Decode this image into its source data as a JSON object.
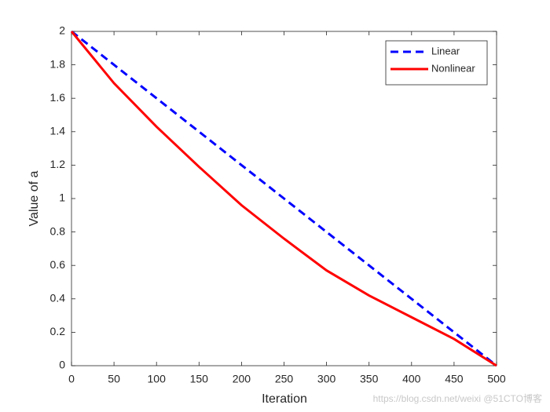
{
  "chart_data": {
    "type": "line",
    "x": [
      0,
      50,
      100,
      150,
      200,
      250,
      300,
      350,
      400,
      450,
      500
    ],
    "series": [
      {
        "name": "Linear",
        "color": "#0000ff",
        "dash": true,
        "values": [
          2,
          1.8,
          1.6,
          1.4,
          1.2,
          1.0,
          0.8,
          0.6,
          0.4,
          0.2,
          0
        ]
      },
      {
        "name": "Nonlinear",
        "color": "#ff0000",
        "dash": false,
        "values": [
          2,
          1.69,
          1.43,
          1.19,
          0.96,
          0.76,
          0.57,
          0.42,
          0.29,
          0.16,
          0
        ]
      }
    ],
    "xlabel": "Iteration",
    "ylabel": "Value of a",
    "xlim": [
      0,
      500
    ],
    "ylim": [
      0,
      2
    ],
    "xticks": [
      0,
      50,
      100,
      150,
      200,
      250,
      300,
      350,
      400,
      450,
      500
    ],
    "yticks": [
      0,
      0.2,
      0.4,
      0.6,
      0.8,
      1,
      1.2,
      1.4,
      1.6,
      1.8,
      2
    ],
    "legend": "top-right",
    "watermark": "https://blog.csdn.net/weixi @51CTO博客"
  }
}
